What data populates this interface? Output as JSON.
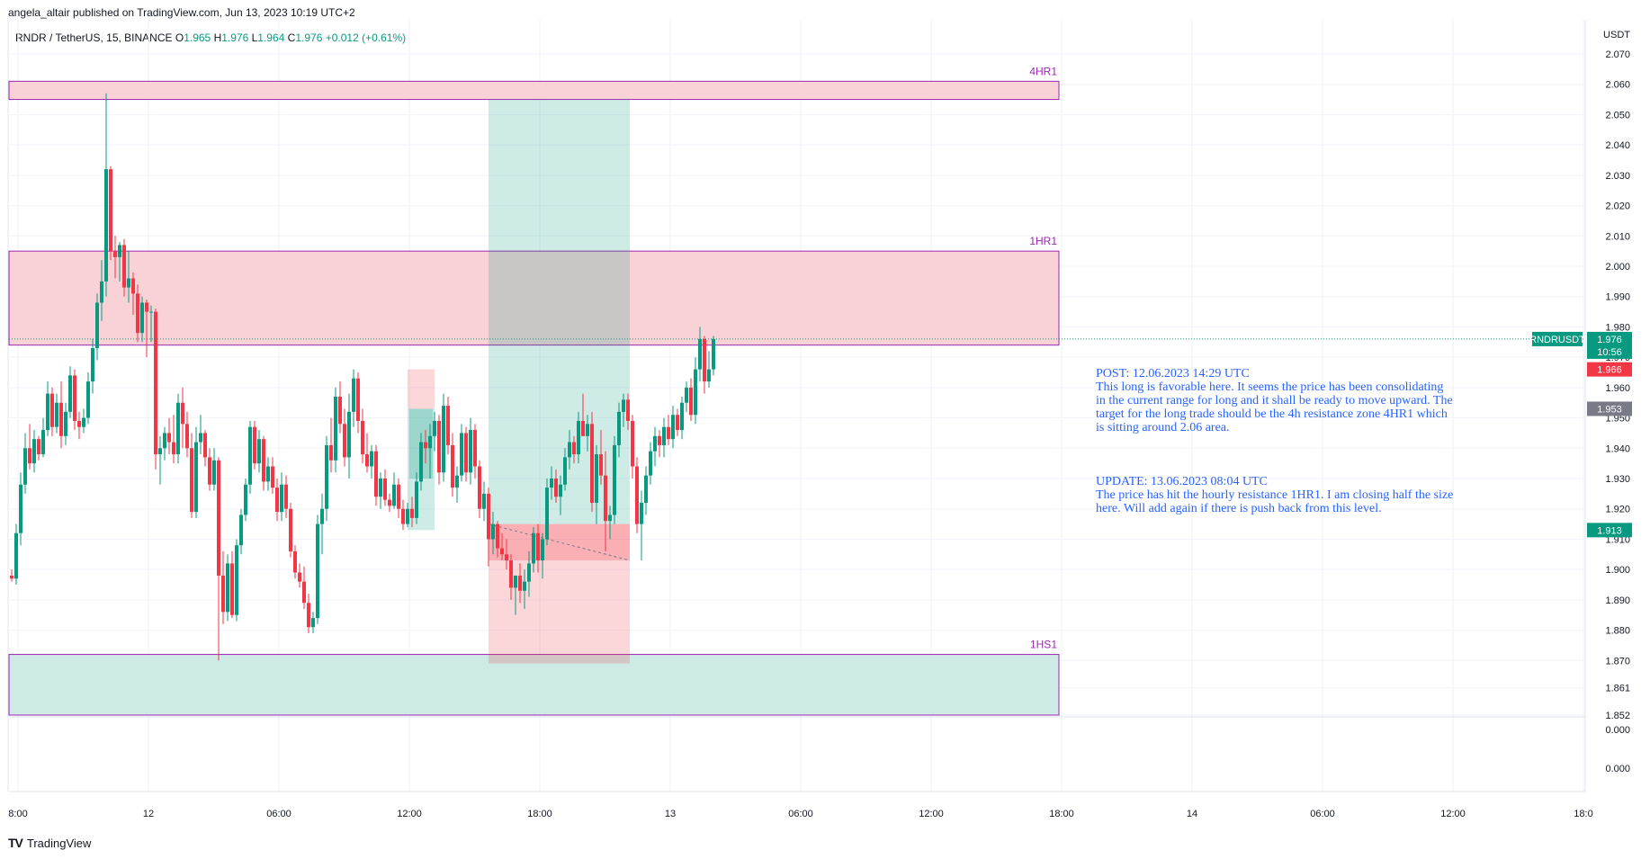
{
  "header": {
    "published": "angela_altair published on TradingView.com, Jun 13, 2023 10:19 UTC+2"
  },
  "symbol": {
    "name": "RNDR / TetherUS, 15, BINANCE",
    "open_label": "O",
    "open": "1.965",
    "high_label": "H",
    "high": "1.976",
    "low_label": "L",
    "low": "1.964",
    "close_label": "C",
    "close": "1.976",
    "change": "+0.012 (+0.61%)"
  },
  "annotation": {
    "post": "POST: 12.06.2023 14:29 UTC\nThis long is favorable here. It seems the price has been consolidating in the current range for long and it shall be ready to move upward. The target for the long trade should be the 4h resistance zone 4HR1 which is sitting around 2.06 area.",
    "update": "UPDATE: 13.06.2023 08:04 UTC\nThe price has hit the hourly resistance 1HR1. I am closing half the size here. Will add again if there is push back from this level."
  },
  "footer": {
    "brand": "TradingView",
    "logo": "TV"
  },
  "colors": {
    "up": "#089981",
    "down": "#f23645",
    "zone_border": "#9c27b0",
    "resistance_fill": "#f8d2d6",
    "support_fill": "#cdeae4",
    "annotation": "#2962ff"
  },
  "chart_data": {
    "type": "candlestick",
    "currency": "USDT",
    "ylim": [
      1.852,
      2.07
    ],
    "y_ticks": [
      "2.070",
      "2.060",
      "2.050",
      "2.040",
      "2.030",
      "2.020",
      "2.010",
      "2.000",
      "1.990",
      "1.980",
      "1.970",
      "1.960",
      "1.950",
      "1.940",
      "1.930",
      "1.920",
      "1.910",
      "1.900",
      "1.890",
      "1.880",
      "1.870",
      "1.861",
      "1.852"
    ],
    "x_ticks": [
      "8:00",
      "12",
      "06:00",
      "12:00",
      "18:00",
      "13",
      "06:00",
      "12:00",
      "18:00",
      "14",
      "06:00",
      "12:00",
      "18:0"
    ],
    "lower_pane_ticks": [
      "0.000",
      "0.000"
    ],
    "zones": [
      {
        "label": "4HR1",
        "top": 2.061,
        "bottom": 2.055,
        "kind": "resistance"
      },
      {
        "label": "1HR1",
        "top": 2.005,
        "bottom": 1.974,
        "kind": "resistance"
      },
      {
        "label": "1HS1",
        "top": 1.872,
        "bottom": 1.852,
        "kind": "support"
      }
    ],
    "long_position": {
      "entry": 1.915,
      "target": 2.055,
      "stop": 1.869
    },
    "small_position": {
      "entry": 1.953,
      "target": 1.966,
      "stop": 1.913
    },
    "price_labels": [
      {
        "label": "RNDRUSDT",
        "value": "1.976",
        "timer": "10:56",
        "level": 1.976,
        "color": "#089981"
      },
      {
        "value": "1.966",
        "level": 1.966,
        "color": "#f23645"
      },
      {
        "value": "1.953",
        "level": 1.953,
        "color": "#787b86"
      },
      {
        "value": "1.913",
        "level": 1.913,
        "color": "#089981"
      }
    ],
    "candles": [
      [
        1.898,
        1.9,
        1.896,
        1.897
      ],
      [
        1.897,
        1.915,
        1.895,
        1.912
      ],
      [
        1.912,
        1.932,
        1.908,
        1.928
      ],
      [
        1.928,
        1.945,
        1.925,
        1.94
      ],
      [
        1.94,
        1.948,
        1.933,
        1.935
      ],
      [
        1.935,
        1.946,
        1.932,
        1.943
      ],
      [
        1.943,
        1.944,
        1.936,
        1.938
      ],
      [
        1.938,
        1.95,
        1.937,
        1.946
      ],
      [
        1.946,
        1.962,
        1.944,
        1.958
      ],
      [
        1.958,
        1.96,
        1.944,
        1.947
      ],
      [
        1.947,
        1.958,
        1.945,
        1.955
      ],
      [
        1.955,
        1.962,
        1.94,
        1.944
      ],
      [
        1.944,
        1.955,
        1.941,
        1.952
      ],
      [
        1.952,
        1.967,
        1.95,
        1.964
      ],
      [
        1.964,
        1.966,
        1.946,
        1.949
      ],
      [
        1.949,
        1.952,
        1.943,
        1.947
      ],
      [
        1.947,
        1.953,
        1.945,
        1.95
      ],
      [
        1.95,
        1.965,
        1.948,
        1.962
      ],
      [
        1.962,
        1.976,
        1.958,
        1.973
      ],
      [
        1.973,
        1.991,
        1.969,
        1.988
      ],
      [
        1.988,
        2.002,
        1.982,
        1.995
      ],
      [
        1.995,
        2.057,
        1.99,
        2.032
      ],
      [
        2.032,
        2.033,
        2.002,
        2.005
      ],
      [
        2.005,
        2.01,
        1.996,
        2.003
      ],
      [
        2.003,
        2.008,
        1.995,
        2.007
      ],
      [
        2.007,
        2.009,
        1.99,
        1.993
      ],
      [
        1.993,
        2.005,
        1.988,
        1.996
      ],
      [
        1.996,
        1.998,
        1.984,
        1.991
      ],
      [
        1.991,
        1.994,
        1.975,
        1.978
      ],
      [
        1.978,
        1.99,
        1.975,
        1.988
      ],
      [
        1.988,
        1.989,
        1.97,
        1.985
      ],
      [
        1.985,
        1.987,
        1.975,
        1.985
      ],
      [
        1.985,
        1.986,
        1.933,
        1.938
      ],
      [
        1.938,
        1.944,
        1.928,
        1.94
      ],
      [
        1.94,
        1.947,
        1.936,
        1.945
      ],
      [
        1.945,
        1.95,
        1.938,
        1.942
      ],
      [
        1.942,
        1.951,
        1.935,
        1.938
      ],
      [
        1.938,
        1.958,
        1.935,
        1.955
      ],
      [
        1.955,
        1.96,
        1.94,
        1.948
      ],
      [
        1.948,
        1.952,
        1.937,
        1.94
      ],
      [
        1.94,
        1.945,
        1.917,
        1.919
      ],
      [
        1.919,
        1.947,
        1.917,
        1.942
      ],
      [
        1.942,
        1.951,
        1.938,
        1.945
      ],
      [
        1.945,
        1.946,
        1.934,
        1.937
      ],
      [
        1.937,
        1.94,
        1.926,
        1.928
      ],
      [
        1.928,
        1.94,
        1.926,
        1.936
      ],
      [
        1.936,
        1.937,
        1.87,
        1.898
      ],
      [
        1.898,
        1.906,
        1.882,
        1.886
      ],
      [
        1.886,
        1.905,
        1.883,
        1.902
      ],
      [
        1.902,
        1.906,
        1.884,
        1.885
      ],
      [
        1.885,
        1.91,
        1.883,
        1.908
      ],
      [
        1.908,
        1.92,
        1.905,
        1.918
      ],
      [
        1.918,
        1.93,
        1.916,
        1.928
      ],
      [
        1.928,
        1.949,
        1.925,
        1.947
      ],
      [
        1.947,
        1.949,
        1.933,
        1.935
      ],
      [
        1.935,
        1.946,
        1.932,
        1.943
      ],
      [
        1.943,
        1.944,
        1.926,
        1.929
      ],
      [
        1.929,
        1.937,
        1.926,
        1.934
      ],
      [
        1.934,
        1.937,
        1.925,
        1.927
      ],
      [
        1.927,
        1.93,
        1.916,
        1.919
      ],
      [
        1.919,
        1.932,
        1.916,
        1.928
      ],
      [
        1.928,
        1.931,
        1.917,
        1.92
      ],
      [
        1.92,
        1.922,
        1.904,
        1.906
      ],
      [
        1.906,
        1.908,
        1.897,
        1.899
      ],
      [
        1.899,
        1.902,
        1.894,
        1.896
      ],
      [
        1.896,
        1.901,
        1.887,
        1.889
      ],
      [
        1.889,
        1.892,
        1.879,
        1.881
      ],
      [
        1.881,
        1.886,
        1.879,
        1.884
      ],
      [
        1.884,
        1.918,
        1.882,
        1.915
      ],
      [
        1.915,
        1.925,
        1.905,
        1.92
      ],
      [
        1.92,
        1.944,
        1.916,
        1.941
      ],
      [
        1.941,
        1.95,
        1.932,
        1.936
      ],
      [
        1.936,
        1.96,
        1.932,
        1.957
      ],
      [
        1.957,
        1.962,
        1.945,
        1.948
      ],
      [
        1.948,
        1.953,
        1.934,
        1.937
      ],
      [
        1.937,
        1.958,
        1.93,
        1.952
      ],
      [
        1.952,
        1.966,
        1.947,
        1.963
      ],
      [
        1.963,
        1.965,
        1.945,
        1.949
      ],
      [
        1.949,
        1.953,
        1.935,
        1.938
      ],
      [
        1.938,
        1.945,
        1.932,
        1.934
      ],
      [
        1.934,
        1.941,
        1.93,
        1.939
      ],
      [
        1.939,
        1.941,
        1.921,
        1.924
      ],
      [
        1.924,
        1.932,
        1.92,
        1.93
      ],
      [
        1.93,
        1.933,
        1.921,
        1.923
      ],
      [
        1.923,
        1.925,
        1.919,
        1.921
      ],
      [
        1.921,
        1.932,
        1.92,
        1.928
      ],
      [
        1.928,
        1.93,
        1.917,
        1.92
      ],
      [
        1.92,
        1.923,
        1.913,
        1.915
      ],
      [
        1.915,
        1.922,
        1.914,
        1.92
      ],
      [
        1.92,
        1.924,
        1.914,
        1.917
      ],
      [
        1.917,
        1.932,
        1.915,
        1.929
      ],
      [
        1.929,
        1.945,
        1.926,
        1.942
      ],
      [
        1.942,
        1.946,
        1.935,
        1.94
      ],
      [
        1.94,
        1.948,
        1.93,
        1.944
      ],
      [
        1.944,
        1.952,
        1.939,
        1.949
      ],
      [
        1.949,
        1.951,
        1.928,
        1.932
      ],
      [
        1.932,
        1.958,
        1.929,
        1.954
      ],
      [
        1.954,
        1.957,
        1.938,
        1.941
      ],
      [
        1.941,
        1.945,
        1.924,
        1.927
      ],
      [
        1.927,
        1.934,
        1.922,
        1.931
      ],
      [
        1.931,
        1.948,
        1.929,
        1.945
      ],
      [
        1.945,
        1.947,
        1.929,
        1.932
      ],
      [
        1.932,
        1.95,
        1.928,
        1.946
      ],
      [
        1.946,
        1.948,
        1.93,
        1.934
      ],
      [
        1.934,
        1.936,
        1.917,
        1.92
      ],
      [
        1.92,
        1.929,
        1.916,
        1.925
      ],
      [
        1.925,
        1.927,
        1.901,
        1.91
      ],
      [
        1.91,
        1.919,
        1.905,
        1.915
      ],
      [
        1.915,
        1.916,
        1.904,
        1.907
      ],
      [
        1.907,
        1.912,
        1.903,
        1.905
      ],
      [
        1.905,
        1.91,
        1.9,
        1.903
      ],
      [
        1.903,
        1.905,
        1.89,
        1.894
      ],
      [
        1.894,
        1.898,
        1.885,
        1.898
      ],
      [
        1.898,
        1.902,
        1.889,
        1.893
      ],
      [
        1.893,
        1.9,
        1.887,
        1.896
      ],
      [
        1.896,
        1.906,
        1.891,
        1.902
      ],
      [
        1.902,
        1.914,
        1.899,
        1.912
      ],
      [
        1.912,
        1.915,
        1.899,
        1.903
      ],
      [
        1.903,
        1.912,
        1.897,
        1.91
      ],
      [
        1.91,
        1.93,
        1.908,
        1.927
      ],
      [
        1.927,
        1.934,
        1.923,
        1.93
      ],
      [
        1.93,
        1.933,
        1.922,
        1.924
      ],
      [
        1.924,
        1.931,
        1.918,
        1.928
      ],
      [
        1.928,
        1.94,
        1.926,
        1.937
      ],
      [
        1.937,
        1.946,
        1.933,
        1.942
      ],
      [
        1.942,
        1.944,
        1.935,
        1.938
      ],
      [
        1.938,
        1.952,
        1.935,
        1.949
      ],
      [
        1.949,
        1.958,
        1.944,
        1.944
      ],
      [
        1.944,
        1.951,
        1.939,
        1.948
      ],
      [
        1.948,
        1.952,
        1.919,
        1.922
      ],
      [
        1.922,
        1.941,
        1.915,
        1.938
      ],
      [
        1.938,
        1.946,
        1.928,
        1.931
      ],
      [
        1.931,
        1.939,
        1.906,
        1.916
      ],
      [
        1.916,
        1.921,
        1.91,
        1.918
      ],
      [
        1.918,
        1.944,
        1.915,
        1.941
      ],
      [
        1.941,
        1.955,
        1.937,
        1.952
      ],
      [
        1.952,
        1.958,
        1.947,
        1.956
      ],
      [
        1.956,
        1.958,
        1.946,
        1.949
      ],
      [
        1.949,
        1.951,
        1.93,
        1.934
      ],
      [
        1.934,
        1.937,
        1.912,
        1.915
      ],
      [
        1.915,
        1.926,
        1.903,
        1.922
      ],
      [
        1.922,
        1.934,
        1.918,
        1.931
      ],
      [
        1.931,
        1.942,
        1.928,
        1.939
      ],
      [
        1.939,
        1.947,
        1.934,
        1.944
      ],
      [
        1.944,
        1.946,
        1.937,
        1.941
      ],
      [
        1.941,
        1.95,
        1.937,
        1.947
      ],
      [
        1.947,
        1.951,
        1.941,
        1.943
      ],
      [
        1.943,
        1.954,
        1.94,
        1.951
      ],
      [
        1.951,
        1.953,
        1.944,
        1.946
      ],
      [
        1.946,
        1.957,
        1.943,
        1.955
      ],
      [
        1.955,
        1.962,
        1.952,
        1.96
      ],
      [
        1.96,
        1.963,
        1.949,
        1.951
      ],
      [
        1.951,
        1.97,
        1.948,
        1.966
      ],
      [
        1.966,
        1.98,
        1.962,
        1.976
      ],
      [
        1.976,
        1.977,
        1.958,
        1.962
      ],
      [
        1.962,
        1.972,
        1.96,
        1.966
      ],
      [
        1.966,
        1.977,
        1.964,
        1.976
      ]
    ]
  }
}
